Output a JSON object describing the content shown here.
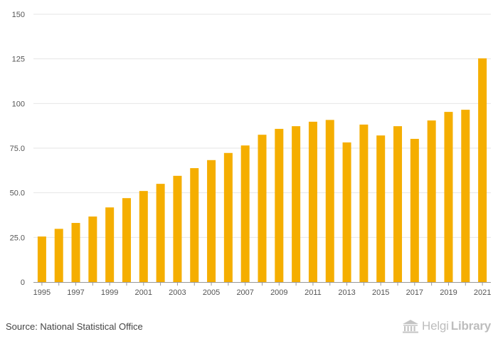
{
  "chart_data": {
    "type": "bar",
    "title": "",
    "xlabel": "",
    "ylabel": "",
    "ylim": [
      0,
      150
    ],
    "yticks": [
      {
        "value": 0,
        "label": "0"
      },
      {
        "value": 25,
        "label": "25.0"
      },
      {
        "value": 50,
        "label": "50.0"
      },
      {
        "value": 75,
        "label": "75.0"
      },
      {
        "value": 100,
        "label": "100"
      },
      {
        "value": 125,
        "label": "125"
      },
      {
        "value": 150,
        "label": "150"
      }
    ],
    "categories": [
      "1995",
      "1996",
      "1997",
      "1998",
      "1999",
      "2000",
      "2001",
      "2002",
      "2003",
      "2004",
      "2005",
      "2006",
      "2007",
      "2008",
      "2009",
      "2010",
      "2011",
      "2012",
      "2013",
      "2014",
      "2015",
      "2016",
      "2017",
      "2018",
      "2019",
      "2020",
      "2021"
    ],
    "values": [
      25.5,
      29.8,
      33.1,
      36.7,
      41.8,
      47.0,
      51.0,
      55.0,
      59.5,
      63.8,
      68.3,
      72.3,
      76.5,
      82.5,
      85.8,
      87.3,
      89.8,
      90.8,
      78.2,
      88.2,
      82.1,
      87.3,
      80.2,
      90.5,
      95.3,
      96.5,
      125.3
    ],
    "bar_color": "#f5ae00",
    "grid": true
  },
  "footer": {
    "source": "Source: National Statistical Office",
    "brand_light": "Helgi",
    "brand_bold": "Library"
  }
}
